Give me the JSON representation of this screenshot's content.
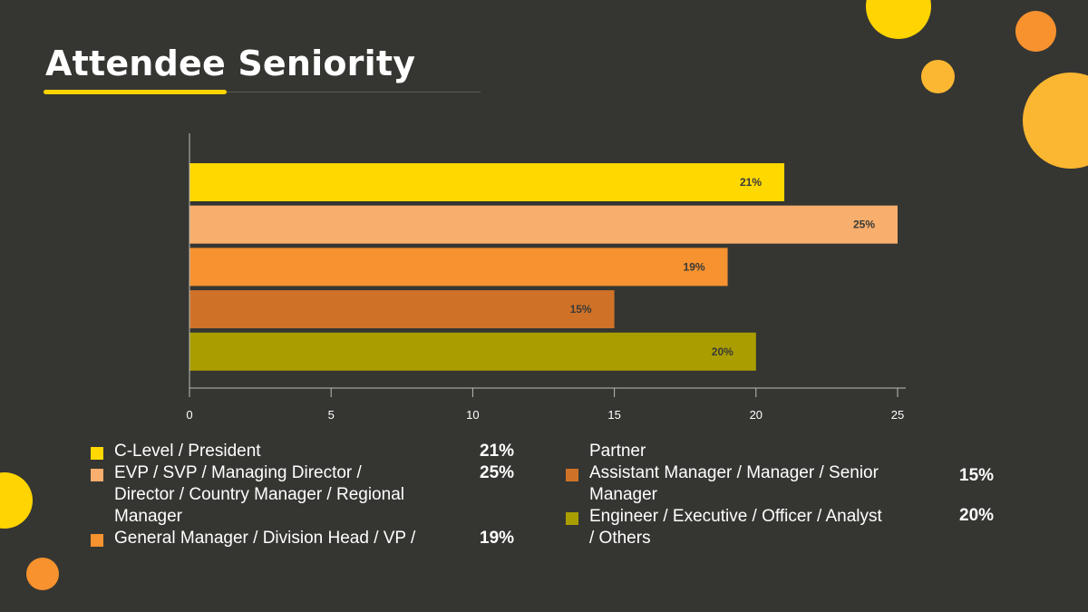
{
  "title": "Attendee Seniority",
  "colors": {
    "background": "#353632",
    "accent": "#ffd400",
    "deco_yellow": "#ffd400",
    "deco_orange": "#f7922f",
    "deco_amber": "#fbb731"
  },
  "chart_data": {
    "type": "bar",
    "orientation": "horizontal",
    "categories": [
      "C-Level / President",
      "EVP / SVP / Managing Director / Director / Country Manager / Regional Manager",
      "General Manager / Division Head / VP / Partner",
      "Assistant Manager / Manager / Senior Manager",
      "Engineer / Executive / Officer / Analyst / Others"
    ],
    "values": [
      21,
      25,
      19,
      15,
      20
    ],
    "data_labels": [
      "21%",
      "25%",
      "19%",
      "15%",
      "20%"
    ],
    "colors": [
      "#ffd800",
      "#f8ae6c",
      "#f6922f",
      "#cf7228",
      "#a99d00"
    ],
    "xlim": [
      0,
      25
    ],
    "xticks": [
      0,
      5,
      10,
      15,
      20,
      25
    ],
    "xtick_labels": [
      "0",
      "5",
      "10",
      "15",
      "20",
      "25"
    ],
    "title": "Attendee Seniority",
    "xlabel": "",
    "ylabel": "",
    "grid": false,
    "legend": "bottom"
  },
  "legend": {
    "left": [
      {
        "lines": [
          "C-Level / President"
        ],
        "pct": "21%",
        "color": "#ffd800"
      },
      {
        "lines": [
          "EVP / SVP / Managing Director /",
          "Director / Country Manager / Regional",
          "Manager"
        ],
        "pct": "25%",
        "color": "#f8ae6c"
      },
      {
        "lines": [
          "General Manager / Division Head / VP /"
        ],
        "pct": "19%",
        "color": "#f6922f"
      }
    ],
    "right_continuation": "Partner",
    "right": [
      {
        "lines": [
          "Assistant Manager / Manager / Senior",
          "Manager"
        ],
        "pct": "15%",
        "color": "#cf7228"
      },
      {
        "lines": [
          "Engineer / Executive / Officer / Analyst",
          "/ Others"
        ],
        "pct": "20%",
        "color": "#a99d00"
      }
    ]
  }
}
